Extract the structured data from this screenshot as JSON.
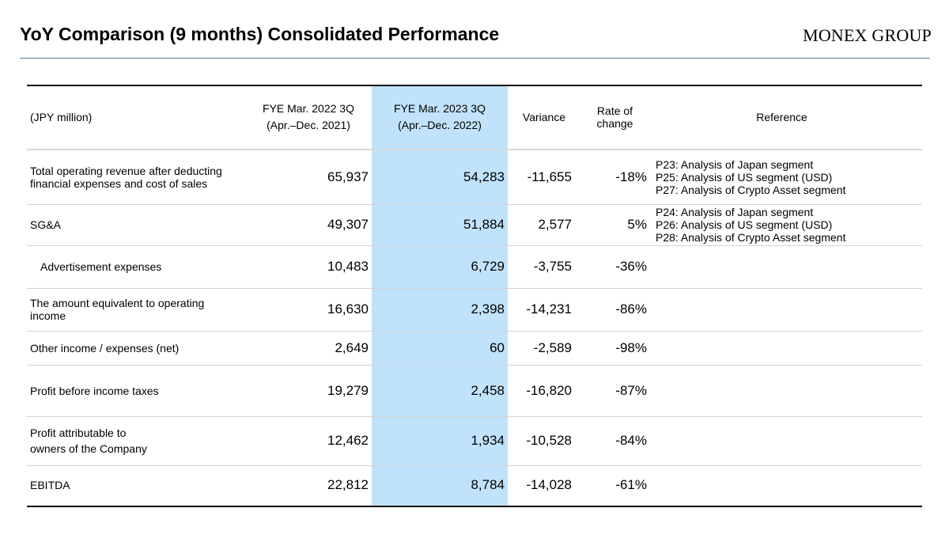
{
  "header": {
    "title": "YoY Comparison (9 months) Consolidated Performance",
    "logo": "MONEX GROUP"
  },
  "table": {
    "columns": {
      "unit": "(JPY million)",
      "prev_line1": "FYE Mar. 2022 3Q",
      "prev_line2": "(Apr.–Dec. 2021)",
      "curr_line1": "FYE Mar. 2023 3Q",
      "curr_line2": "(Apr.–Dec. 2022)",
      "variance": "Variance",
      "rate_line1": "Rate of",
      "rate_line2": "change",
      "reference": "Reference"
    },
    "rows": [
      {
        "label_line1": "Total operating revenue after deducting",
        "label_line2": "financial expenses and cost of sales",
        "prev": "65,937",
        "curr": "54,283",
        "variance": "-11,655",
        "rate": "-18%",
        "ref1": "P23: Analysis of Japan segment",
        "ref2": "P25: Analysis of US segment (USD)",
        "ref3": "P27: Analysis of Crypto Asset segment"
      },
      {
        "label_line1": "SG&A",
        "label_line2": "",
        "prev": "49,307",
        "curr": "51,884",
        "variance": "2,577",
        "rate": "5%",
        "ref1": "P24: Analysis of Japan segment",
        "ref2": "P26: Analysis of US segment (USD)",
        "ref3": "P28: Analysis of Crypto Asset segment"
      },
      {
        "label_line1": "Advertisement expenses",
        "label_line2": "",
        "prev": "10,483",
        "curr": "6,729",
        "variance": "-3,755",
        "rate": "-36%",
        "ref1": "",
        "ref2": "",
        "ref3": ""
      },
      {
        "label_line1": "The amount equivalent to operating",
        "label_line2": "income",
        "prev": "16,630",
        "curr": "2,398",
        "variance": "-14,231",
        "rate": "-86%",
        "ref1": "",
        "ref2": "",
        "ref3": ""
      },
      {
        "label_line1": "Other income / expenses (net)",
        "label_line2": "",
        "prev": "2,649",
        "curr": "60",
        "variance": "-2,589",
        "rate": "-98%",
        "ref1": "",
        "ref2": "",
        "ref3": ""
      },
      {
        "label_line1": "Profit before income taxes",
        "label_line2": "",
        "prev": "19,279",
        "curr": "2,458",
        "variance": "-16,820",
        "rate": "-87%",
        "ref1": "",
        "ref2": "",
        "ref3": ""
      },
      {
        "label_line1": "Profit attributable to",
        "label_line2": "owners of the Company",
        "prev": "12,462",
        "curr": "1,934",
        "variance": "-10,528",
        "rate": "-84%",
        "ref1": "",
        "ref2": "",
        "ref3": ""
      },
      {
        "label_line1": "EBITDA",
        "label_line2": "",
        "prev": "22,812",
        "curr": "8,784",
        "variance": "-14,028",
        "rate": "-61%",
        "ref1": "",
        "ref2": "",
        "ref3": ""
      }
    ]
  },
  "colors": {
    "highlight_column": "#c1e2fb",
    "title_rule": "#5b7f98",
    "row_divider": "#d4d4d4"
  }
}
